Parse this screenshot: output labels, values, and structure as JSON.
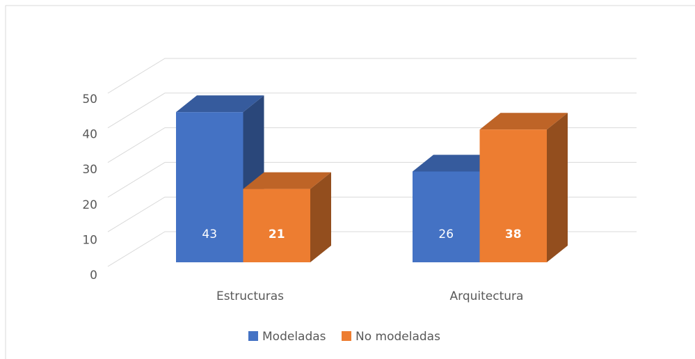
{
  "chart_data": {
    "type": "bar3d",
    "categories": [
      "Estructuras",
      "Arquitectura"
    ],
    "series": [
      {
        "name": "Modeladas",
        "color": "#4472c4",
        "values": [
          43,
          26
        ]
      },
      {
        "name": "No modeladas",
        "color": "#ed7d31",
        "values": [
          21,
          38
        ]
      }
    ],
    "ylim": [
      0,
      50
    ],
    "yticks": [
      0,
      10,
      20,
      30,
      40,
      50
    ],
    "grid": true,
    "legend": "bottom"
  }
}
